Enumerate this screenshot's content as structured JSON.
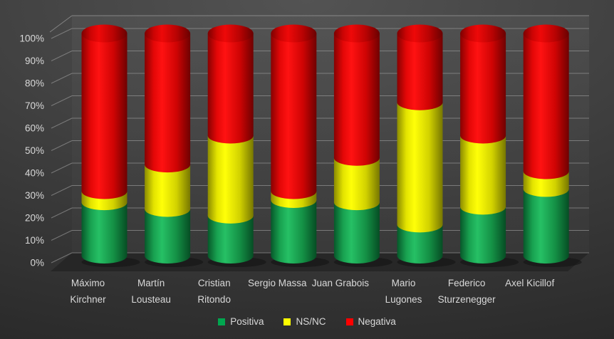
{
  "chart_data": {
    "type": "bar",
    "variant": "3d-cylinder-stacked",
    "stacking": "percent",
    "title": "",
    "categories": [
      "Máximo Kirchner",
      "Martín Lousteau",
      "Cristian Ritondo",
      "Sergio Massa",
      "Juan Grabois",
      "Mario Lugones",
      "Federico Sturzenegger",
      "Axel Kicillof"
    ],
    "category_label_lines": [
      [
        "Máximo",
        "Kirchner"
      ],
      [
        "Martín",
        "Lousteau"
      ],
      [
        "Cristian",
        "Ritondo"
      ],
      [
        "Sergio Massa"
      ],
      [
        "Juan Grabois"
      ],
      [
        "Mario",
        "Lugones"
      ],
      [
        "Federico",
        "Sturzenegger"
      ],
      [
        "Axel Kicillof"
      ]
    ],
    "series": [
      {
        "name": "Positiva",
        "color": "#00A64F",
        "values": [
          24,
          21,
          18,
          25,
          24,
          14,
          22,
          30
        ],
        "gradient": [
          "#07582a",
          "#18a150",
          "#26c065",
          "#149045",
          "#064d24"
        ]
      },
      {
        "name": "NS/NC",
        "color": "#FFFF00",
        "values": [
          5,
          20,
          36,
          4,
          20,
          55,
          32,
          8
        ],
        "gradient": [
          "#8b8b00",
          "#e3e300",
          "#ffff08",
          "#d2d200",
          "#777700"
        ]
      },
      {
        "name": "Negativa",
        "color": "#FF0000",
        "values": [
          71,
          59,
          46,
          71,
          56,
          31,
          46,
          62
        ],
        "gradient": [
          "#870202",
          "#e30707",
          "#ff1212",
          "#cf0404",
          "#6f0101"
        ]
      }
    ],
    "cap_gradient": [
      "#7c0101",
      "#cc0404",
      "#ee0909",
      "#b80303",
      "#690101"
    ],
    "y_axis": {
      "min": 0,
      "max": 100,
      "unit": "%",
      "ticks": [
        "100%",
        "90%",
        "80%",
        "70%",
        "60%",
        "50%",
        "40%",
        "30%",
        "20%",
        "10%",
        "0%"
      ]
    },
    "legend": {
      "position": "bottom",
      "items": [
        {
          "label": "Positiva",
          "color": "#00A64F"
        },
        {
          "label": "NS/NC",
          "color": "#FFFF00"
        },
        {
          "label": "Negativa",
          "color": "#FF0000"
        }
      ]
    },
    "grid": true,
    "background": "dark-gray-gradient",
    "text_color": "#D9D9D9",
    "gridline_color": "#9A9A9A"
  }
}
